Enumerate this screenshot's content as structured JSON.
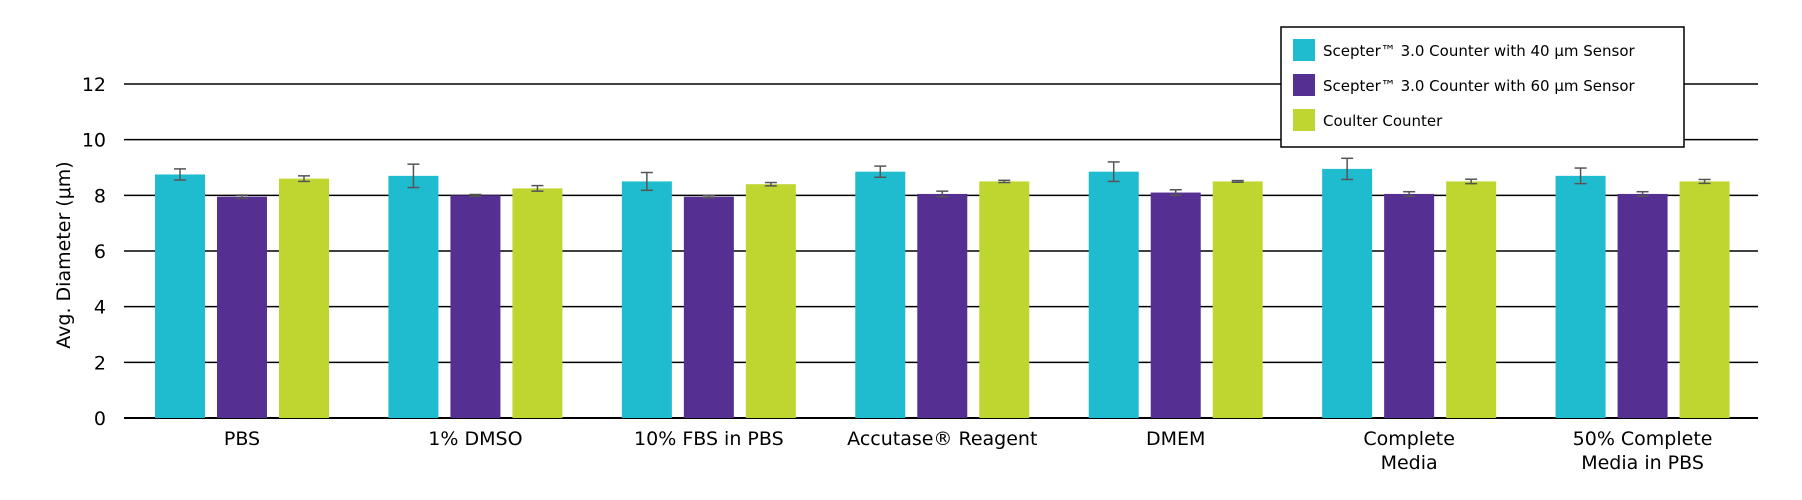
{
  "chart_data": {
    "type": "bar",
    "title": "",
    "xlabel": "",
    "ylabel": "Avg. Diameter (μm)",
    "ylim": [
      0,
      12
    ],
    "yticks": [
      0,
      2,
      4,
      6,
      8,
      10,
      12
    ],
    "grid": true,
    "legend_position": "top-right",
    "categories": [
      [
        "PBS"
      ],
      [
        "1% DMSO"
      ],
      [
        "10% FBS in PBS"
      ],
      [
        "Accutase® Reagent"
      ],
      [
        "DMEM"
      ],
      [
        "Complete",
        "Media"
      ],
      [
        "50% Complete",
        "Media in PBS"
      ]
    ],
    "series": [
      {
        "name": "Scepter™ 3.0 Counter with 40 μm Sensor",
        "color": "#1fbccf",
        "values": [
          8.75,
          8.7,
          8.5,
          8.85,
          8.85,
          8.95,
          8.7
        ],
        "errors": [
          0.2,
          0.42,
          0.32,
          0.2,
          0.35,
          0.38,
          0.28
        ]
      },
      {
        "name": "Scepter™ 3.0 Counter with 60 μm Sensor",
        "color": "#553092",
        "values": [
          7.95,
          8.0,
          7.95,
          8.05,
          8.1,
          8.05,
          8.05
        ],
        "errors": [
          0.06,
          0.03,
          0.04,
          0.1,
          0.1,
          0.08,
          0.08
        ]
      },
      {
        "name": "Coulter Counter",
        "color": "#bfd630",
        "values": [
          8.6,
          8.25,
          8.4,
          8.5,
          8.5,
          8.5,
          8.5
        ],
        "errors": [
          0.1,
          0.1,
          0.06,
          0.04,
          0.03,
          0.08,
          0.07
        ]
      }
    ]
  }
}
